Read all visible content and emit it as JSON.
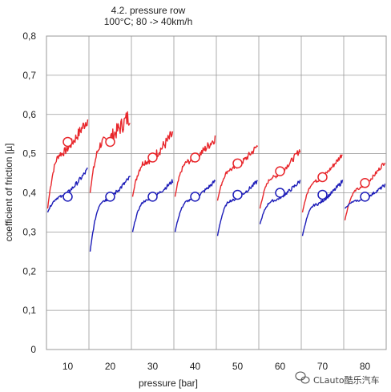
{
  "chart_data": {
    "type": "line",
    "title": "4.2. pressure row",
    "subtitle": "100°C; 80 -> 40km/h",
    "xlabel": "pressure [bar]",
    "ylabel": "coefficient of friction [µ]",
    "categories": [
      "10",
      "20",
      "30",
      "40",
      "50",
      "60",
      "70",
      "80"
    ],
    "ylim": [
      0,
      0.8
    ],
    "yticks": [
      "0",
      "0,1",
      "0,2",
      "0,3",
      "0,4",
      "0,5",
      "0,6",
      "0,7",
      "0,8"
    ],
    "ytick_values": [
      0,
      0.1,
      0.2,
      0.3,
      0.4,
      0.5,
      0.6,
      0.7,
      0.8
    ],
    "grid": true,
    "series": [
      {
        "color": "#e8262b",
        "segments": [
          {
            "start": 0.36,
            "mid": 0.5,
            "end": 0.59,
            "noise": 0.012,
            "marker": 0.53
          },
          {
            "start": 0.4,
            "mid": 0.53,
            "end": 0.6,
            "noise": 0.018,
            "marker": 0.53
          },
          {
            "start": 0.39,
            "mid": 0.48,
            "end": 0.55,
            "noise": 0.012,
            "marker": 0.49
          },
          {
            "start": 0.39,
            "mid": 0.48,
            "end": 0.54,
            "noise": 0.009,
            "marker": 0.49
          },
          {
            "start": 0.38,
            "mid": 0.46,
            "end": 0.52,
            "noise": 0.007,
            "marker": 0.475
          },
          {
            "start": 0.36,
            "mid": 0.44,
            "end": 0.51,
            "noise": 0.006,
            "marker": 0.455
          },
          {
            "start": 0.35,
            "mid": 0.43,
            "end": 0.5,
            "noise": 0.005,
            "marker": 0.44
          },
          {
            "start": 0.33,
            "mid": 0.41,
            "end": 0.48,
            "noise": 0.004,
            "marker": 0.425
          }
        ]
      },
      {
        "color": "#1c1cb8",
        "segments": [
          {
            "start": 0.35,
            "mid": 0.39,
            "end": 0.46,
            "noise": 0.005,
            "marker": 0.39
          },
          {
            "start": 0.25,
            "mid": 0.38,
            "end": 0.44,
            "noise": 0.005,
            "marker": 0.39
          },
          {
            "start": 0.3,
            "mid": 0.38,
            "end": 0.43,
            "noise": 0.004,
            "marker": 0.39
          },
          {
            "start": 0.3,
            "mid": 0.38,
            "end": 0.43,
            "noise": 0.004,
            "marker": 0.39
          },
          {
            "start": 0.29,
            "mid": 0.38,
            "end": 0.43,
            "noise": 0.004,
            "marker": 0.395
          },
          {
            "start": 0.32,
            "mid": 0.38,
            "end": 0.43,
            "noise": 0.004,
            "marker": 0.4
          },
          {
            "start": 0.29,
            "mid": 0.37,
            "end": 0.43,
            "noise": 0.004,
            "marker": 0.395
          },
          {
            "start": 0.36,
            "mid": 0.38,
            "end": 0.42,
            "noise": 0.003,
            "marker": 0.39
          }
        ]
      }
    ]
  },
  "watermark": {
    "text": "CLauto酷乐汽车",
    "icon": "wechat-icon"
  }
}
